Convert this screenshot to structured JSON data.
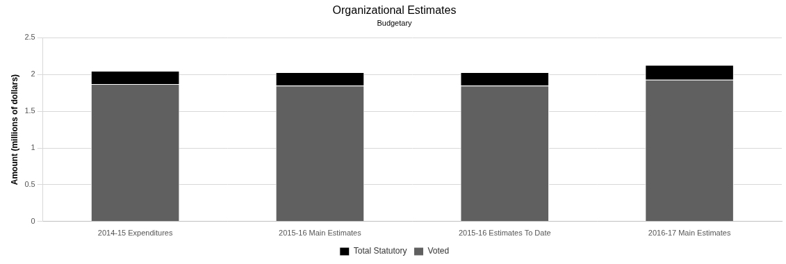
{
  "chart_data": {
    "type": "bar",
    "title": "Organizational Estimates",
    "subtitle": "Budgetary",
    "y_label": "Amount (millions of dollars)",
    "categories": [
      "2014-15 Expenditures",
      "2015-16 Main Estimates",
      "2015-16 Estimates To Date",
      "2016-17 Main Estimates"
    ],
    "series": [
      {
        "name": "Total Statutory",
        "color": "#000000",
        "values": [
          0.18,
          0.18,
          0.18,
          0.2
        ]
      },
      {
        "name": "Voted",
        "color": "#606060",
        "values": [
          1.87,
          1.85,
          1.85,
          1.93
        ]
      }
    ],
    "stacked": true,
    "ylim": [
      0,
      2.5
    ],
    "yticks": [
      0,
      0.5,
      1,
      1.5,
      2,
      2.5
    ],
    "grid": true,
    "legend": "bottom"
  }
}
